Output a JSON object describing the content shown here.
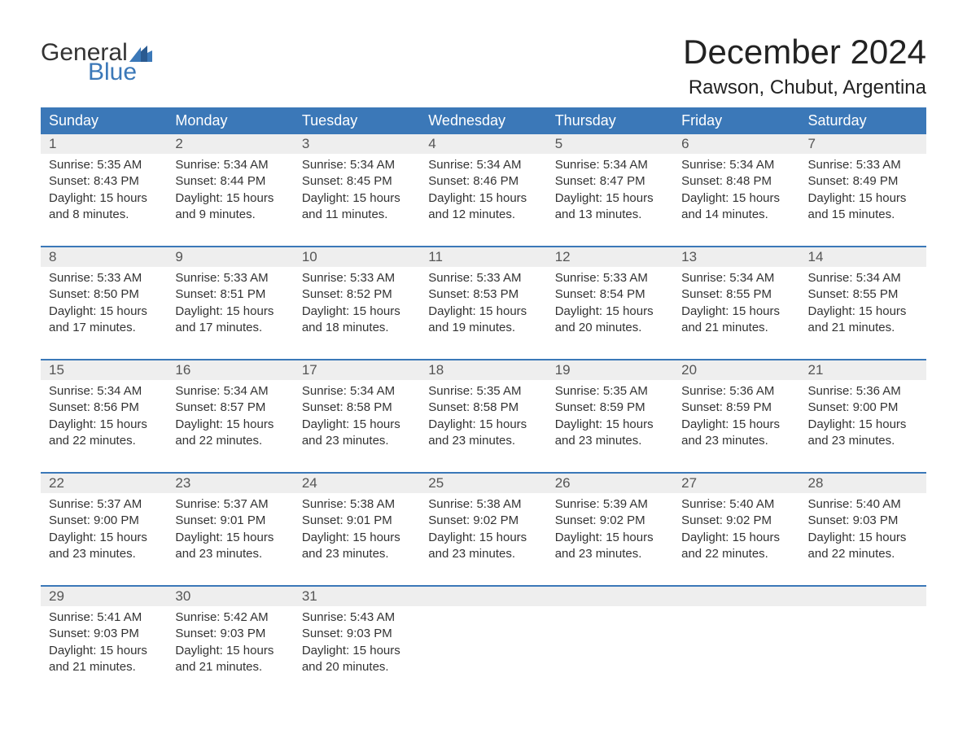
{
  "logo": {
    "general": "General",
    "blue": "Blue"
  },
  "title": "December 2024",
  "location": "Rawson, Chubut, Argentina",
  "colors": {
    "header_bg": "#3b78b8",
    "header_text": "#ffffff",
    "daynum_bg": "#eeeeee",
    "daynum_text": "#555555",
    "body_text": "#333333",
    "accent": "#3b78b8",
    "page_bg": "#ffffff"
  },
  "typography": {
    "title_fontsize": 42,
    "location_fontsize": 24,
    "header_fontsize": 18,
    "daynum_fontsize": 17,
    "cell_fontsize": 15
  },
  "weekdays": [
    "Sunday",
    "Monday",
    "Tuesday",
    "Wednesday",
    "Thursday",
    "Friday",
    "Saturday"
  ],
  "weeks": [
    [
      {
        "n": "1",
        "sr": "Sunrise: 5:35 AM",
        "ss": "Sunset: 8:43 PM",
        "d1": "Daylight: 15 hours",
        "d2": "and 8 minutes."
      },
      {
        "n": "2",
        "sr": "Sunrise: 5:34 AM",
        "ss": "Sunset: 8:44 PM",
        "d1": "Daylight: 15 hours",
        "d2": "and 9 minutes."
      },
      {
        "n": "3",
        "sr": "Sunrise: 5:34 AM",
        "ss": "Sunset: 8:45 PM",
        "d1": "Daylight: 15 hours",
        "d2": "and 11 minutes."
      },
      {
        "n": "4",
        "sr": "Sunrise: 5:34 AM",
        "ss": "Sunset: 8:46 PM",
        "d1": "Daylight: 15 hours",
        "d2": "and 12 minutes."
      },
      {
        "n": "5",
        "sr": "Sunrise: 5:34 AM",
        "ss": "Sunset: 8:47 PM",
        "d1": "Daylight: 15 hours",
        "d2": "and 13 minutes."
      },
      {
        "n": "6",
        "sr": "Sunrise: 5:34 AM",
        "ss": "Sunset: 8:48 PM",
        "d1": "Daylight: 15 hours",
        "d2": "and 14 minutes."
      },
      {
        "n": "7",
        "sr": "Sunrise: 5:33 AM",
        "ss": "Sunset: 8:49 PM",
        "d1": "Daylight: 15 hours",
        "d2": "and 15 minutes."
      }
    ],
    [
      {
        "n": "8",
        "sr": "Sunrise: 5:33 AM",
        "ss": "Sunset: 8:50 PM",
        "d1": "Daylight: 15 hours",
        "d2": "and 17 minutes."
      },
      {
        "n": "9",
        "sr": "Sunrise: 5:33 AM",
        "ss": "Sunset: 8:51 PM",
        "d1": "Daylight: 15 hours",
        "d2": "and 17 minutes."
      },
      {
        "n": "10",
        "sr": "Sunrise: 5:33 AM",
        "ss": "Sunset: 8:52 PM",
        "d1": "Daylight: 15 hours",
        "d2": "and 18 minutes."
      },
      {
        "n": "11",
        "sr": "Sunrise: 5:33 AM",
        "ss": "Sunset: 8:53 PM",
        "d1": "Daylight: 15 hours",
        "d2": "and 19 minutes."
      },
      {
        "n": "12",
        "sr": "Sunrise: 5:33 AM",
        "ss": "Sunset: 8:54 PM",
        "d1": "Daylight: 15 hours",
        "d2": "and 20 minutes."
      },
      {
        "n": "13",
        "sr": "Sunrise: 5:34 AM",
        "ss": "Sunset: 8:55 PM",
        "d1": "Daylight: 15 hours",
        "d2": "and 21 minutes."
      },
      {
        "n": "14",
        "sr": "Sunrise: 5:34 AM",
        "ss": "Sunset: 8:55 PM",
        "d1": "Daylight: 15 hours",
        "d2": "and 21 minutes."
      }
    ],
    [
      {
        "n": "15",
        "sr": "Sunrise: 5:34 AM",
        "ss": "Sunset: 8:56 PM",
        "d1": "Daylight: 15 hours",
        "d2": "and 22 minutes."
      },
      {
        "n": "16",
        "sr": "Sunrise: 5:34 AM",
        "ss": "Sunset: 8:57 PM",
        "d1": "Daylight: 15 hours",
        "d2": "and 22 minutes."
      },
      {
        "n": "17",
        "sr": "Sunrise: 5:34 AM",
        "ss": "Sunset: 8:58 PM",
        "d1": "Daylight: 15 hours",
        "d2": "and 23 minutes."
      },
      {
        "n": "18",
        "sr": "Sunrise: 5:35 AM",
        "ss": "Sunset: 8:58 PM",
        "d1": "Daylight: 15 hours",
        "d2": "and 23 minutes."
      },
      {
        "n": "19",
        "sr": "Sunrise: 5:35 AM",
        "ss": "Sunset: 8:59 PM",
        "d1": "Daylight: 15 hours",
        "d2": "and 23 minutes."
      },
      {
        "n": "20",
        "sr": "Sunrise: 5:36 AM",
        "ss": "Sunset: 8:59 PM",
        "d1": "Daylight: 15 hours",
        "d2": "and 23 minutes."
      },
      {
        "n": "21",
        "sr": "Sunrise: 5:36 AM",
        "ss": "Sunset: 9:00 PM",
        "d1": "Daylight: 15 hours",
        "d2": "and 23 minutes."
      }
    ],
    [
      {
        "n": "22",
        "sr": "Sunrise: 5:37 AM",
        "ss": "Sunset: 9:00 PM",
        "d1": "Daylight: 15 hours",
        "d2": "and 23 minutes."
      },
      {
        "n": "23",
        "sr": "Sunrise: 5:37 AM",
        "ss": "Sunset: 9:01 PM",
        "d1": "Daylight: 15 hours",
        "d2": "and 23 minutes."
      },
      {
        "n": "24",
        "sr": "Sunrise: 5:38 AM",
        "ss": "Sunset: 9:01 PM",
        "d1": "Daylight: 15 hours",
        "d2": "and 23 minutes."
      },
      {
        "n": "25",
        "sr": "Sunrise: 5:38 AM",
        "ss": "Sunset: 9:02 PM",
        "d1": "Daylight: 15 hours",
        "d2": "and 23 minutes."
      },
      {
        "n": "26",
        "sr": "Sunrise: 5:39 AM",
        "ss": "Sunset: 9:02 PM",
        "d1": "Daylight: 15 hours",
        "d2": "and 23 minutes."
      },
      {
        "n": "27",
        "sr": "Sunrise: 5:40 AM",
        "ss": "Sunset: 9:02 PM",
        "d1": "Daylight: 15 hours",
        "d2": "and 22 minutes."
      },
      {
        "n": "28",
        "sr": "Sunrise: 5:40 AM",
        "ss": "Sunset: 9:03 PM",
        "d1": "Daylight: 15 hours",
        "d2": "and 22 minutes."
      }
    ],
    [
      {
        "n": "29",
        "sr": "Sunrise: 5:41 AM",
        "ss": "Sunset: 9:03 PM",
        "d1": "Daylight: 15 hours",
        "d2": "and 21 minutes."
      },
      {
        "n": "30",
        "sr": "Sunrise: 5:42 AM",
        "ss": "Sunset: 9:03 PM",
        "d1": "Daylight: 15 hours",
        "d2": "and 21 minutes."
      },
      {
        "n": "31",
        "sr": "Sunrise: 5:43 AM",
        "ss": "Sunset: 9:03 PM",
        "d1": "Daylight: 15 hours",
        "d2": "and 20 minutes."
      },
      null,
      null,
      null,
      null
    ]
  ]
}
